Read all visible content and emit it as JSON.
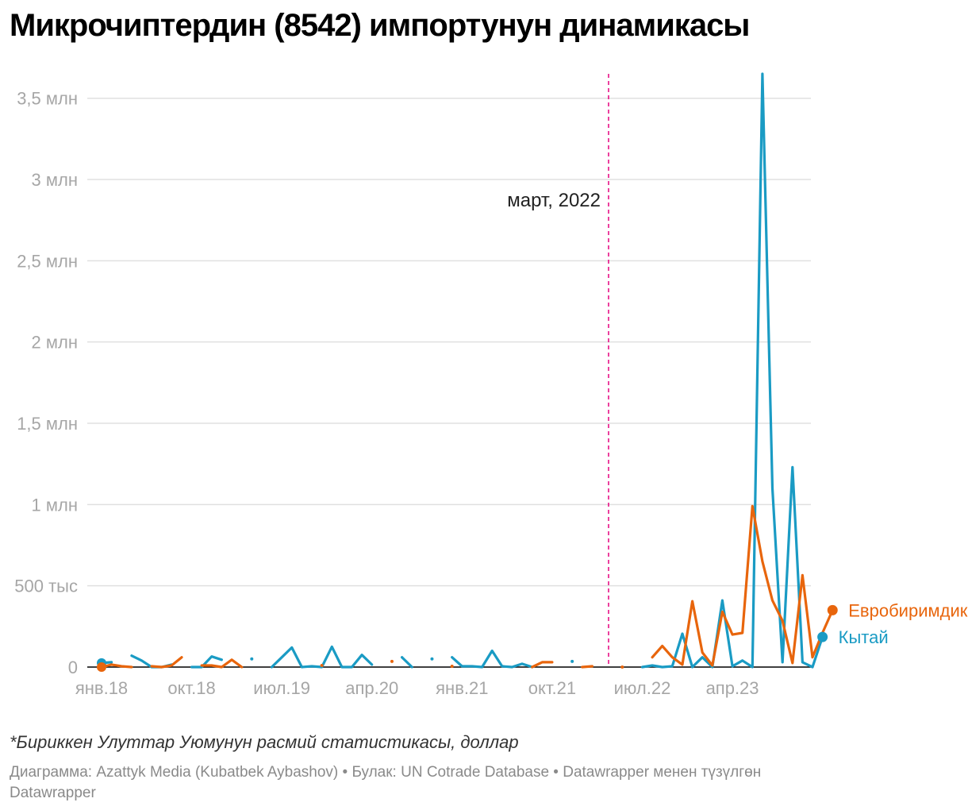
{
  "chart_data": {
    "type": "line",
    "title": "Микрочиптердин (8542) импортунун динамикасы",
    "notes": "*Бириккен Улуттар Уюмунун расмий статистикасы, доллар",
    "credit": "Диаграмма: Azattyk Media (Kubatbek Aybashov) • Булак: UN Cotrade Database • Datawrapper менен түзүлгөн",
    "credit2": "Datawrapper",
    "x_start": "2018-01",
    "x_ticks": [
      "янв.18",
      "окт.18",
      "июл.19",
      "апр.20",
      "янв.21",
      "окт.21",
      "июл.22",
      "апр.23"
    ],
    "y_ticks": [
      {
        "value": 0,
        "label": "0"
      },
      {
        "value": 500000,
        "label": "500 тыс"
      },
      {
        "value": 1000000,
        "label": "1 млн"
      },
      {
        "value": 1500000,
        "label": "1,5 млн"
      },
      {
        "value": 2000000,
        "label": "2 млн"
      },
      {
        "value": 2500000,
        "label": "2,5 млн"
      },
      {
        "value": 3000000,
        "label": "3 млн"
      },
      {
        "value": 3500000,
        "label": "3,5 млн"
      }
    ],
    "ylim": [
      0,
      3650000
    ],
    "annotation": {
      "label": "март, 2022",
      "x": "2022-03",
      "color": "#e6007e"
    },
    "series": [
      {
        "name": "Евробиримдик",
        "color": "#e8650c",
        "values": [
          0,
          15000,
          5000,
          0,
          null,
          5000,
          0,
          10000,
          60000,
          null,
          10000,
          10000,
          0,
          45000,
          0,
          null,
          null,
          null,
          null,
          null,
          null,
          null,
          10000,
          null,
          null,
          null,
          null,
          null,
          null,
          35000,
          null,
          null,
          null,
          null,
          null,
          5000,
          null,
          null,
          null,
          null,
          null,
          null,
          null,
          0,
          30000,
          30000,
          null,
          null,
          0,
          5000,
          null,
          null,
          0,
          null,
          null,
          60000,
          130000,
          60000,
          15000,
          405000,
          90000,
          10000,
          340000,
          200000,
          210000,
          990000,
          650000,
          410000,
          285000,
          25000,
          565000,
          60000,
          210000,
          350000
        ],
        "end_label": "Евробиримдик"
      },
      {
        "name": "Кытай",
        "color": "#1a9bc4",
        "values": [
          25000,
          30000,
          null,
          70000,
          40000,
          0,
          0,
          15000,
          null,
          0,
          0,
          65000,
          45000,
          null,
          null,
          50000,
          null,
          0,
          60000,
          120000,
          0,
          5000,
          0,
          125000,
          0,
          0,
          75000,
          15000,
          null,
          null,
          60000,
          0,
          null,
          50000,
          null,
          60000,
          5000,
          5000,
          0,
          100000,
          5000,
          0,
          20000,
          0,
          null,
          null,
          null,
          35000,
          null,
          null,
          null,
          null,
          null,
          null,
          0,
          10000,
          0,
          5000,
          205000,
          0,
          60000,
          0,
          410000,
          5000,
          40000,
          0,
          3650000,
          1100000,
          30000,
          1230000,
          30000,
          0,
          185000
        ],
        "end_label": "Кытай"
      }
    ]
  }
}
